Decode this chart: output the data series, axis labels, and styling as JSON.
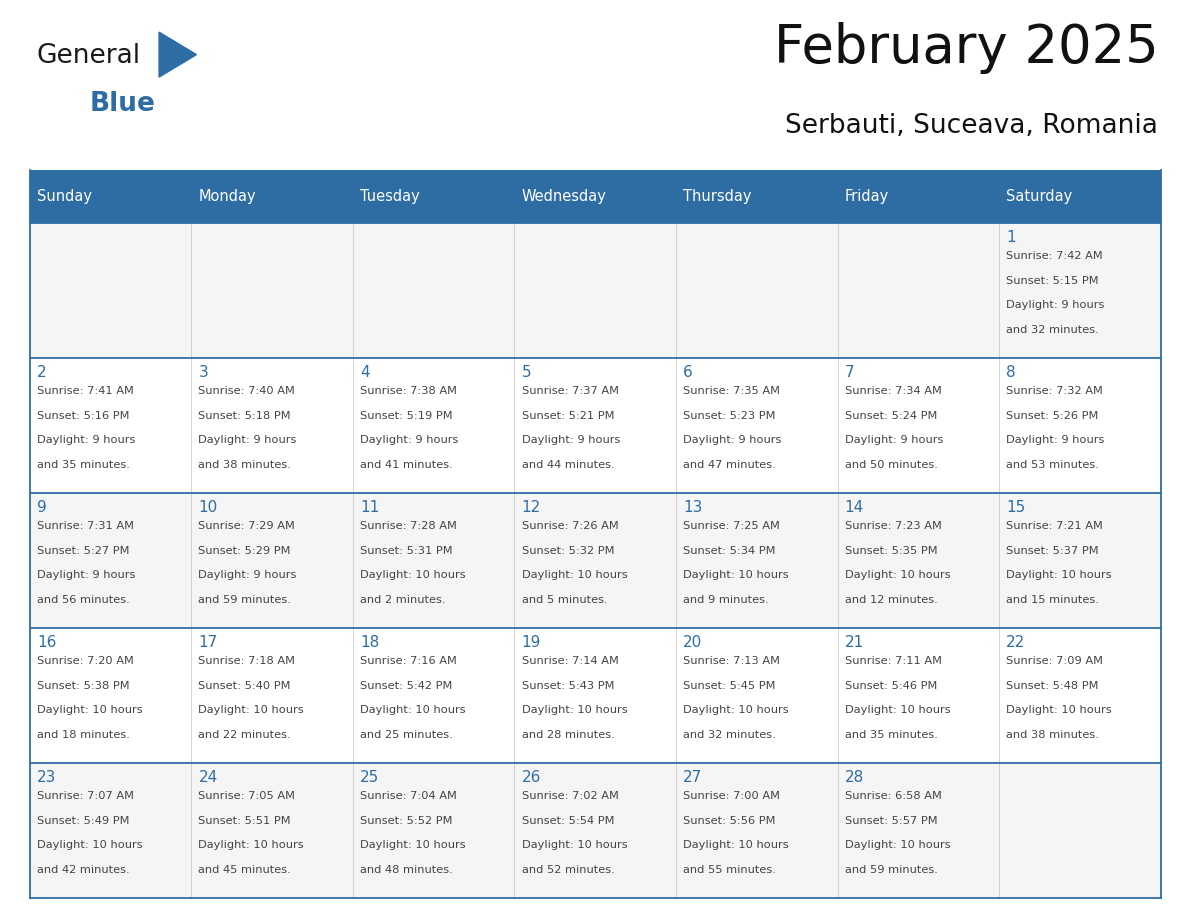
{
  "title": "February 2025",
  "subtitle": "Serbauti, Suceava, Romania",
  "header_color": "#2E6DA4",
  "header_text_color": "#FFFFFF",
  "day_names": [
    "Sunday",
    "Monday",
    "Tuesday",
    "Wednesday",
    "Thursday",
    "Friday",
    "Saturday"
  ],
  "bg_color": "#FFFFFF",
  "cell_bg_even": "#F5F5F5",
  "cell_bg_odd": "#FFFFFF",
  "grid_line_color": "#2E6DA4",
  "day_num_color": "#2E6DA4",
  "text_color": "#444444",
  "logo_general_color": "#1a1a1a",
  "logo_blue_color": "#2E6DA4",
  "weeks": [
    [
      null,
      null,
      null,
      null,
      null,
      null,
      {
        "day": 1,
        "sunrise": "7:42 AM",
        "sunset": "5:15 PM",
        "daylight_line1": "Daylight: 9 hours",
        "daylight_line2": "and 32 minutes."
      }
    ],
    [
      {
        "day": 2,
        "sunrise": "7:41 AM",
        "sunset": "5:16 PM",
        "daylight_line1": "Daylight: 9 hours",
        "daylight_line2": "and 35 minutes."
      },
      {
        "day": 3,
        "sunrise": "7:40 AM",
        "sunset": "5:18 PM",
        "daylight_line1": "Daylight: 9 hours",
        "daylight_line2": "and 38 minutes."
      },
      {
        "day": 4,
        "sunrise": "7:38 AM",
        "sunset": "5:19 PM",
        "daylight_line1": "Daylight: 9 hours",
        "daylight_line2": "and 41 minutes."
      },
      {
        "day": 5,
        "sunrise": "7:37 AM",
        "sunset": "5:21 PM",
        "daylight_line1": "Daylight: 9 hours",
        "daylight_line2": "and 44 minutes."
      },
      {
        "day": 6,
        "sunrise": "7:35 AM",
        "sunset": "5:23 PM",
        "daylight_line1": "Daylight: 9 hours",
        "daylight_line2": "and 47 minutes."
      },
      {
        "day": 7,
        "sunrise": "7:34 AM",
        "sunset": "5:24 PM",
        "daylight_line1": "Daylight: 9 hours",
        "daylight_line2": "and 50 minutes."
      },
      {
        "day": 8,
        "sunrise": "7:32 AM",
        "sunset": "5:26 PM",
        "daylight_line1": "Daylight: 9 hours",
        "daylight_line2": "and 53 minutes."
      }
    ],
    [
      {
        "day": 9,
        "sunrise": "7:31 AM",
        "sunset": "5:27 PM",
        "daylight_line1": "Daylight: 9 hours",
        "daylight_line2": "and 56 minutes."
      },
      {
        "day": 10,
        "sunrise": "7:29 AM",
        "sunset": "5:29 PM",
        "daylight_line1": "Daylight: 9 hours",
        "daylight_line2": "and 59 minutes."
      },
      {
        "day": 11,
        "sunrise": "7:28 AM",
        "sunset": "5:31 PM",
        "daylight_line1": "Daylight: 10 hours",
        "daylight_line2": "and 2 minutes."
      },
      {
        "day": 12,
        "sunrise": "7:26 AM",
        "sunset": "5:32 PM",
        "daylight_line1": "Daylight: 10 hours",
        "daylight_line2": "and 5 minutes."
      },
      {
        "day": 13,
        "sunrise": "7:25 AM",
        "sunset": "5:34 PM",
        "daylight_line1": "Daylight: 10 hours",
        "daylight_line2": "and 9 minutes."
      },
      {
        "day": 14,
        "sunrise": "7:23 AM",
        "sunset": "5:35 PM",
        "daylight_line1": "Daylight: 10 hours",
        "daylight_line2": "and 12 minutes."
      },
      {
        "day": 15,
        "sunrise": "7:21 AM",
        "sunset": "5:37 PM",
        "daylight_line1": "Daylight: 10 hours",
        "daylight_line2": "and 15 minutes."
      }
    ],
    [
      {
        "day": 16,
        "sunrise": "7:20 AM",
        "sunset": "5:38 PM",
        "daylight_line1": "Daylight: 10 hours",
        "daylight_line2": "and 18 minutes."
      },
      {
        "day": 17,
        "sunrise": "7:18 AM",
        "sunset": "5:40 PM",
        "daylight_line1": "Daylight: 10 hours",
        "daylight_line2": "and 22 minutes."
      },
      {
        "day": 18,
        "sunrise": "7:16 AM",
        "sunset": "5:42 PM",
        "daylight_line1": "Daylight: 10 hours",
        "daylight_line2": "and 25 minutes."
      },
      {
        "day": 19,
        "sunrise": "7:14 AM",
        "sunset": "5:43 PM",
        "daylight_line1": "Daylight: 10 hours",
        "daylight_line2": "and 28 minutes."
      },
      {
        "day": 20,
        "sunrise": "7:13 AM",
        "sunset": "5:45 PM",
        "daylight_line1": "Daylight: 10 hours",
        "daylight_line2": "and 32 minutes."
      },
      {
        "day": 21,
        "sunrise": "7:11 AM",
        "sunset": "5:46 PM",
        "daylight_line1": "Daylight: 10 hours",
        "daylight_line2": "and 35 minutes."
      },
      {
        "day": 22,
        "sunrise": "7:09 AM",
        "sunset": "5:48 PM",
        "daylight_line1": "Daylight: 10 hours",
        "daylight_line2": "and 38 minutes."
      }
    ],
    [
      {
        "day": 23,
        "sunrise": "7:07 AM",
        "sunset": "5:49 PM",
        "daylight_line1": "Daylight: 10 hours",
        "daylight_line2": "and 42 minutes."
      },
      {
        "day": 24,
        "sunrise": "7:05 AM",
        "sunset": "5:51 PM",
        "daylight_line1": "Daylight: 10 hours",
        "daylight_line2": "and 45 minutes."
      },
      {
        "day": 25,
        "sunrise": "7:04 AM",
        "sunset": "5:52 PM",
        "daylight_line1": "Daylight: 10 hours",
        "daylight_line2": "and 48 minutes."
      },
      {
        "day": 26,
        "sunrise": "7:02 AM",
        "sunset": "5:54 PM",
        "daylight_line1": "Daylight: 10 hours",
        "daylight_line2": "and 52 minutes."
      },
      {
        "day": 27,
        "sunrise": "7:00 AM",
        "sunset": "5:56 PM",
        "daylight_line1": "Daylight: 10 hours",
        "daylight_line2": "and 55 minutes."
      },
      {
        "day": 28,
        "sunrise": "6:58 AM",
        "sunset": "5:57 PM",
        "daylight_line1": "Daylight: 10 hours",
        "daylight_line2": "and 59 minutes."
      },
      null
    ]
  ]
}
